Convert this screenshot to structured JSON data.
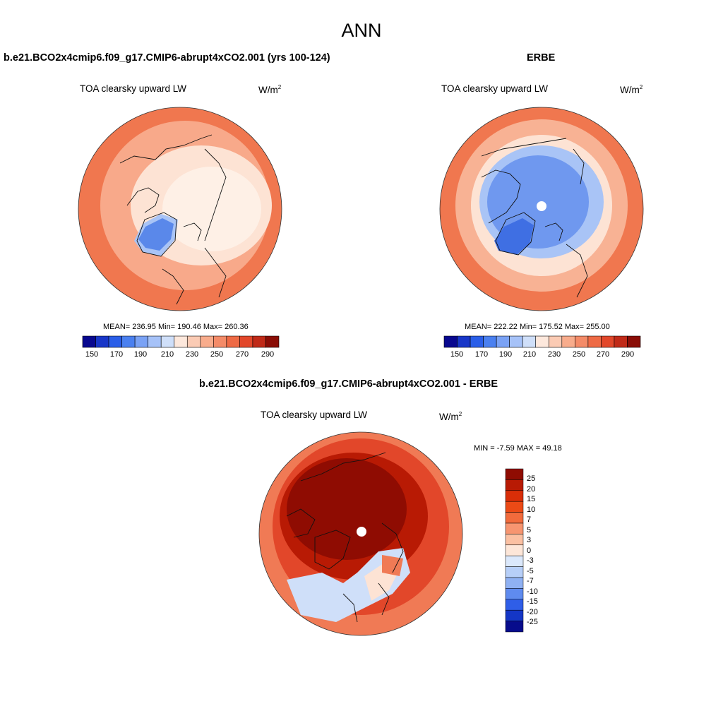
{
  "figure": {
    "title": "ANN"
  },
  "panels": [
    {
      "id": "test",
      "title": "b.e21.BCO2x4cmip6.f09_g17.CMIP6-abrupt4xCO2.001 (yrs 100-124)",
      "variable": "TOA clearsky upward LW",
      "units_base": "W/m",
      "units_exp": "2",
      "stats": "MEAN= 236.95  Min= 190.46  Max= 260.36",
      "colorbar": {
        "ticks": [
          "150",
          "170",
          "190",
          "210",
          "230",
          "250",
          "270",
          "290"
        ],
        "colors": [
          "#08088f",
          "#1836c8",
          "#2a5ee8",
          "#4a80f0",
          "#7aa2f5",
          "#a6c2f8",
          "#cfdff9",
          "#fde8dc",
          "#fbcbb4",
          "#f8ac8c",
          "#f48b68",
          "#ee6a45",
          "#e2472a",
          "#c02a18",
          "#8a0d06"
        ]
      },
      "map_colors": {
        "warm_outer": "#f0774f",
        "mid": "#f8a98a",
        "inner": "#fde3d4",
        "core": "#fef0e6",
        "cold": "#5a88ea",
        "cold_edge": "#a9c4f6"
      }
    },
    {
      "id": "obs",
      "title": "ERBE",
      "variable": "TOA clearsky upward LW",
      "units_base": "W/m",
      "units_exp": "2",
      "stats": "MEAN= 222.22  Min= 175.52  Max= 255.00",
      "colorbar": {
        "ticks": [
          "150",
          "170",
          "190",
          "210",
          "230",
          "250",
          "270",
          "290"
        ],
        "colors": [
          "#08088f",
          "#1836c8",
          "#2a5ee8",
          "#4a80f0",
          "#7aa2f5",
          "#a6c2f8",
          "#cfdff9",
          "#fde8dc",
          "#fbcbb4",
          "#f8ac8c",
          "#f48b68",
          "#ee6a45",
          "#e2472a",
          "#c02a18",
          "#8a0d06"
        ]
      },
      "map_colors": {
        "warm_outer": "#f0774f",
        "mid": "#f8b294",
        "inner": "#fde3d4",
        "ring": "#a9c4f6",
        "core": "#6f98ef",
        "cold": "#3f6fe3"
      }
    },
    {
      "id": "diff",
      "title": "b.e21.BCO2x4cmip6.f09_g17.CMIP6-abrupt4xCO2.001 - ERBE",
      "variable": "TOA clearsky upward LW",
      "units_base": "W/m",
      "units_exp": "2",
      "stats": "MIN =  -7.59 MAX =  49.18",
      "colorbar": {
        "ticks": [
          "25",
          "20",
          "15",
          "10",
          "7",
          "5",
          "3",
          "0",
          "-3",
          "-5",
          "-7",
          "-10",
          "-15",
          "-20",
          "-25"
        ],
        "colors": [
          "#8f0c02",
          "#b81a04",
          "#d92e08",
          "#ec4a16",
          "#f26b3c",
          "#f79570",
          "#fbc0a2",
          "#fde6d8",
          "#dbe8fb",
          "#b7cff8",
          "#8fb1f3",
          "#5f8bef",
          "#2f5ee8",
          "#1436c6",
          "#070c8c"
        ]
      },
      "map_colors": {
        "outer": "#f07a55",
        "mid": "#e2472a",
        "dark": "#b81a04",
        "core": "#8f0c02",
        "cold": "#cfdff9",
        "pale": "#fde3d4"
      }
    }
  ]
}
